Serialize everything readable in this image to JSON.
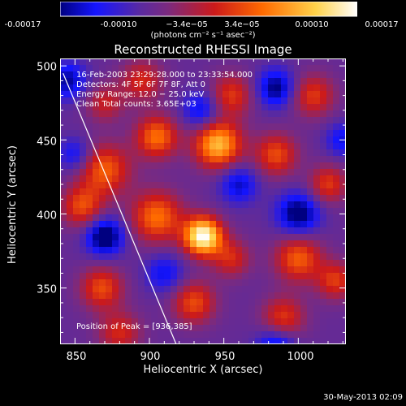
{
  "colorbar": {
    "ticks": [
      "-0.00017",
      "-0.00010",
      "−3.4e−05",
      "3.4e−05",
      "0.00010",
      "0.00017"
    ],
    "units": "(photons cm⁻² s⁻¹ asec⁻²)"
  },
  "chart_data": {
    "type": "heatmap",
    "title": "Reconstructed RHESSI Image",
    "xlabel": "Heliocentric X (arcsec)",
    "ylabel": "Heliocentric Y (arcsec)",
    "xlim": [
      840,
      1032
    ],
    "ylim": [
      312,
      505
    ],
    "xticks": [
      "850",
      "900",
      "950",
      "1000"
    ],
    "yticks": [
      "500",
      "450",
      "400",
      "350"
    ],
    "color_range": [
      -0.00017,
      0.00017
    ],
    "peak": [
      936,
      385
    ],
    "info_lines": [
      "16-Feb-2003 23:29:28.000 to 23:33:54.000",
      "Detectors: 4F 5F 6F 7F 8F, Att 0",
      "Energy Range: 12.0 − 25.0 keV",
      "Clean    Total counts: 3.65E+03"
    ],
    "peak_label": "Position of Peak = [936,385]"
  },
  "footer": "30-May-2013 02:09",
  "colors": {
    "low": "#1010ff",
    "mid": "#5a2a9a",
    "high": "#ffffff"
  }
}
